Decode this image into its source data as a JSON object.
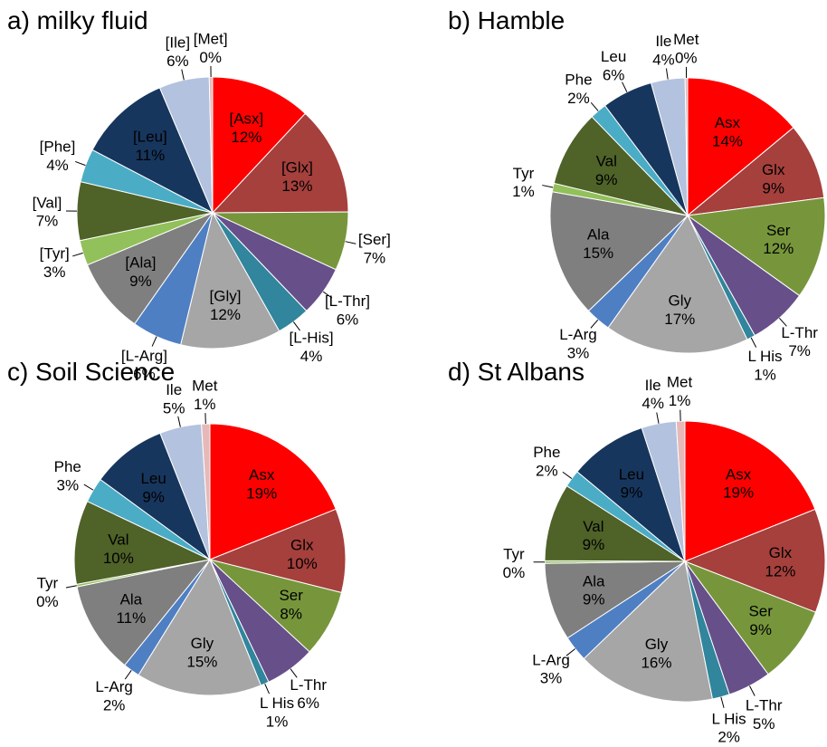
{
  "chart_data": [
    {
      "type": "pie",
      "title": "a) milky fluid",
      "categories": [
        "[Asx]",
        "[Glx]",
        "[Ser]",
        "[L-Thr]",
        "[L-His]",
        "[Gly]",
        "[L-Arg]",
        "[Ala]",
        "[Tyr]",
        "[Val]",
        "[Phe]",
        "[Leu]",
        "[Ile]",
        "[Met]"
      ],
      "values": [
        12,
        13,
        7,
        6,
        4,
        12,
        6,
        9,
        3,
        7,
        4,
        11,
        6,
        0.4
      ],
      "value_labels": [
        "12%",
        "13%",
        "7%",
        "6%",
        "4%",
        "12%",
        "6%",
        "9%",
        "3%",
        "7%",
        "4%",
        "11%",
        "6%",
        "0%"
      ],
      "colors": [
        "#ff0000",
        "#a5403d",
        "#77963c",
        "#674f8a",
        "#31859c",
        "#a6a6a6",
        "#4f7fc3",
        "#7f7f7f",
        "#92c05a",
        "#4f6228",
        "#4bacc6",
        "#17365d",
        "#b3c2de",
        "#e6b9b8"
      ]
    },
    {
      "type": "pie",
      "title": "b) Hamble",
      "categories": [
        "Asx",
        "Glx",
        "Ser",
        "L-Thr",
        "L His",
        "Gly",
        "L-Arg",
        "Ala",
        "Tyr",
        "Val",
        "Phe",
        "Leu",
        "Ile",
        "Met"
      ],
      "values": [
        14,
        9,
        12,
        7,
        1,
        17,
        3,
        15,
        1,
        9,
        2,
        6,
        4,
        0.3
      ],
      "value_labels": [
        "14%",
        "9%",
        "12%",
        "7%",
        "1%",
        "17%",
        "3%",
        "15%",
        "1%",
        "9%",
        "2%",
        "6%",
        "4%",
        "0%"
      ],
      "colors": [
        "#ff0000",
        "#a5403d",
        "#77963c",
        "#674f8a",
        "#31859c",
        "#a6a6a6",
        "#4f7fc3",
        "#7f7f7f",
        "#92c05a",
        "#4f6228",
        "#4bacc6",
        "#17365d",
        "#b3c2de",
        "#e6b9b8"
      ]
    },
    {
      "type": "pie",
      "title": "c) Soil Science",
      "categories": [
        "Asx",
        "Glx",
        "Ser",
        "L-Thr",
        "L His",
        "Gly",
        "L-Arg",
        "Ala",
        "Tyr",
        "Val",
        "Phe",
        "Leu",
        "Ile",
        "Met"
      ],
      "values": [
        19,
        10,
        8,
        6,
        1,
        15,
        2,
        11,
        0.3,
        10,
        3,
        9,
        5,
        1
      ],
      "value_labels": [
        "19%",
        "10%",
        "8%",
        "6%",
        "1%",
        "15%",
        "2%",
        "11%",
        "0%",
        "10%",
        "3%",
        "9%",
        "5%",
        "1%"
      ],
      "colors": [
        "#ff0000",
        "#a5403d",
        "#77963c",
        "#674f8a",
        "#31859c",
        "#a6a6a6",
        "#4f7fc3",
        "#7f7f7f",
        "#92c05a",
        "#4f6228",
        "#4bacc6",
        "#17365d",
        "#b3c2de",
        "#e6b9b8"
      ]
    },
    {
      "type": "pie",
      "title": "d) St Albans",
      "categories": [
        "Asx",
        "Glx",
        "Ser",
        "L-Thr",
        "L His",
        "Gly",
        "L-Arg",
        "Ala",
        "Tyr",
        "Val",
        "Phe",
        "Leu",
        "Ile",
        "Met"
      ],
      "values": [
        19,
        12,
        9,
        5,
        2,
        16,
        3,
        9,
        0.3,
        9,
        2,
        9,
        4,
        1
      ],
      "value_labels": [
        "19%",
        "12%",
        "9%",
        "5%",
        "2%",
        "16%",
        "3%",
        "9%",
        "0%",
        "9%",
        "2%",
        "9%",
        "4%",
        "1%"
      ],
      "colors": [
        "#ff0000",
        "#a5403d",
        "#77963c",
        "#674f8a",
        "#31859c",
        "#a6a6a6",
        "#4f7fc3",
        "#7f7f7f",
        "#92c05a",
        "#4f6228",
        "#4bacc6",
        "#17365d",
        "#b3c2de",
        "#e6b9b8"
      ]
    }
  ]
}
